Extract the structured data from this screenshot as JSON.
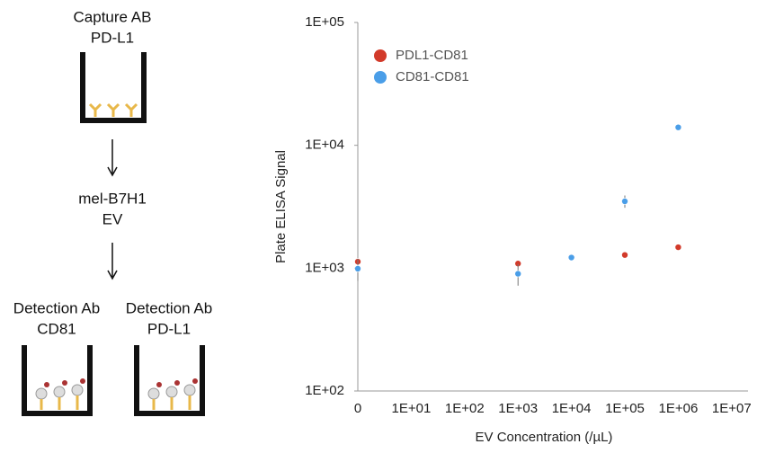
{
  "diagram": {
    "capture": [
      "Capture AB",
      "PD-L1"
    ],
    "sample": [
      "mel-B7H1",
      "EV"
    ],
    "detection_left": [
      "Detection Ab",
      "CD81"
    ],
    "detection_right": [
      "Detection Ab",
      "PD-L1"
    ]
  },
  "chart_data": {
    "type": "scatter",
    "x_label": "EV Concentration (/µL)",
    "y_label": "Plate ELISA Signal",
    "categories": [
      "0",
      "1E+01",
      "1E+02",
      "1E+03",
      "1E+04",
      "1E+05",
      "1E+06",
      "1E+07"
    ],
    "series": [
      {
        "name": "PDL1-CD81",
        "color": "#d23a2a",
        "values": [
          1130,
          null,
          null,
          1090,
          1230,
          1280,
          1480,
          null
        ]
      },
      {
        "name": "CD81-CD81",
        "color": "#4a9ee8",
        "values": [
          990,
          null,
          null,
          900,
          1220,
          3500,
          14000,
          null
        ],
        "errors": [
          200,
          null,
          null,
          180,
          null,
          400,
          null,
          null
        ]
      }
    ],
    "ylim": [
      100,
      100000
    ],
    "log_y": true,
    "yticks": [
      {
        "value": 100,
        "label": "1E+02"
      },
      {
        "value": 1000,
        "label": "1E+03"
      },
      {
        "value": 10000,
        "label": "1E+04"
      },
      {
        "value": 100000,
        "label": "1E+05"
      }
    ],
    "grid": false,
    "legend": "top-left"
  }
}
